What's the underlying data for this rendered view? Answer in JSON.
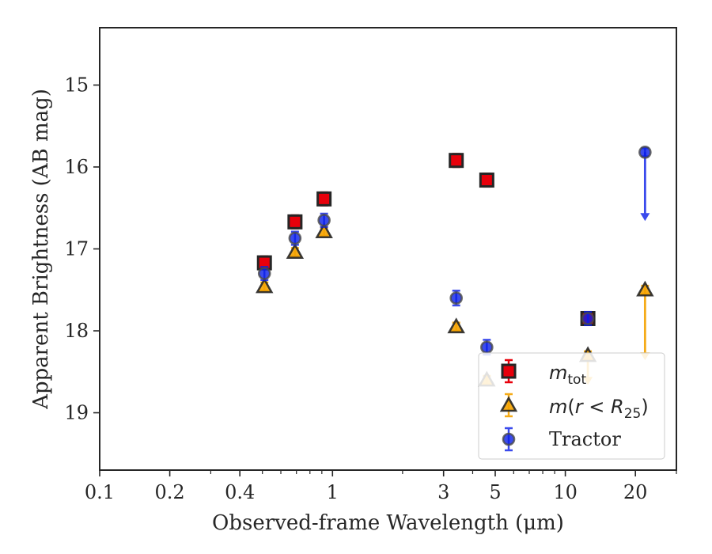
{
  "chart_data": {
    "type": "scatter",
    "title": "",
    "xlabel": "Observed-frame Wavelength (μm)",
    "ylabel": "Apparent Brightness (AB mag)",
    "xscale": "log",
    "xlim": [
      0.1,
      30
    ],
    "ylim": [
      19.7,
      14.3
    ],
    "y_inverted": true,
    "grid": false,
    "legend_position": "lower-right",
    "x_ticks": [
      {
        "value": 0.1,
        "label": "0.1"
      },
      {
        "value": 0.2,
        "label": "0.2"
      },
      {
        "value": 0.4,
        "label": "0.4"
      },
      {
        "value": 1,
        "label": "1"
      },
      {
        "value": 3,
        "label": "3"
      },
      {
        "value": 5,
        "label": "5"
      },
      {
        "value": 10,
        "label": "10"
      },
      {
        "value": 20,
        "label": "20"
      }
    ],
    "y_ticks": [
      {
        "value": 15,
        "label": "15"
      },
      {
        "value": 16,
        "label": "16"
      },
      {
        "value": 17,
        "label": "17"
      },
      {
        "value": 18,
        "label": "18"
      },
      {
        "value": 19,
        "label": "19"
      }
    ],
    "series": [
      {
        "name": "m_tot",
        "marker": "square",
        "color": "#e8000b",
        "edge_color": "#262626",
        "error_color": "#e8000b",
        "points": [
          {
            "x": 0.51,
            "y": 17.17,
            "err": 0.08
          },
          {
            "x": 0.69,
            "y": 16.67,
            "err": 0.08
          },
          {
            "x": 0.92,
            "y": 16.39,
            "err": 0.08
          },
          {
            "x": 3.4,
            "y": 15.92,
            "err": 0.08
          },
          {
            "x": 4.6,
            "y": 16.16,
            "err": 0.08
          },
          {
            "x": 12.5,
            "y": 17.85,
            "err": 0.08
          }
        ]
      },
      {
        "name": "m(r < R25)",
        "marker": "triangle",
        "color": "#f5a300",
        "edge_color": "#262626",
        "error_color": "#f5a300",
        "points": [
          {
            "x": 0.51,
            "y": 17.46,
            "err": 0.05
          },
          {
            "x": 0.69,
            "y": 17.04,
            "err": 0.05
          },
          {
            "x": 0.92,
            "y": 16.79,
            "err": 0.05
          },
          {
            "x": 3.4,
            "y": 17.95,
            "err": 0.05
          },
          {
            "x": 4.6,
            "y": 18.6,
            "err": 0.05
          },
          {
            "x": 12.5,
            "y": 18.3,
            "err": 0.05,
            "upper_limit_to": 18.65
          },
          {
            "x": 22,
            "y": 17.5,
            "err": 0.05,
            "upper_limit_to": 18.35
          }
        ]
      },
      {
        "name": "Tractor",
        "marker": "circle",
        "color": "#0a1ee8",
        "edge_color": "#4a4a4a",
        "error_color": "#0a1ee8",
        "points": [
          {
            "x": 0.51,
            "y": 17.3,
            "err": 0.08
          },
          {
            "x": 0.69,
            "y": 16.87,
            "err": 0.08
          },
          {
            "x": 0.92,
            "y": 16.65,
            "err": 0.08
          },
          {
            "x": 3.4,
            "y": 17.6,
            "err": 0.09
          },
          {
            "x": 4.6,
            "y": 18.2,
            "err": 0.09
          },
          {
            "x": 12.5,
            "y": 17.85,
            "err": 0.08
          },
          {
            "x": 22,
            "y": 15.82,
            "err": 0.05,
            "upper_limit_to": 16.65
          }
        ]
      }
    ]
  }
}
